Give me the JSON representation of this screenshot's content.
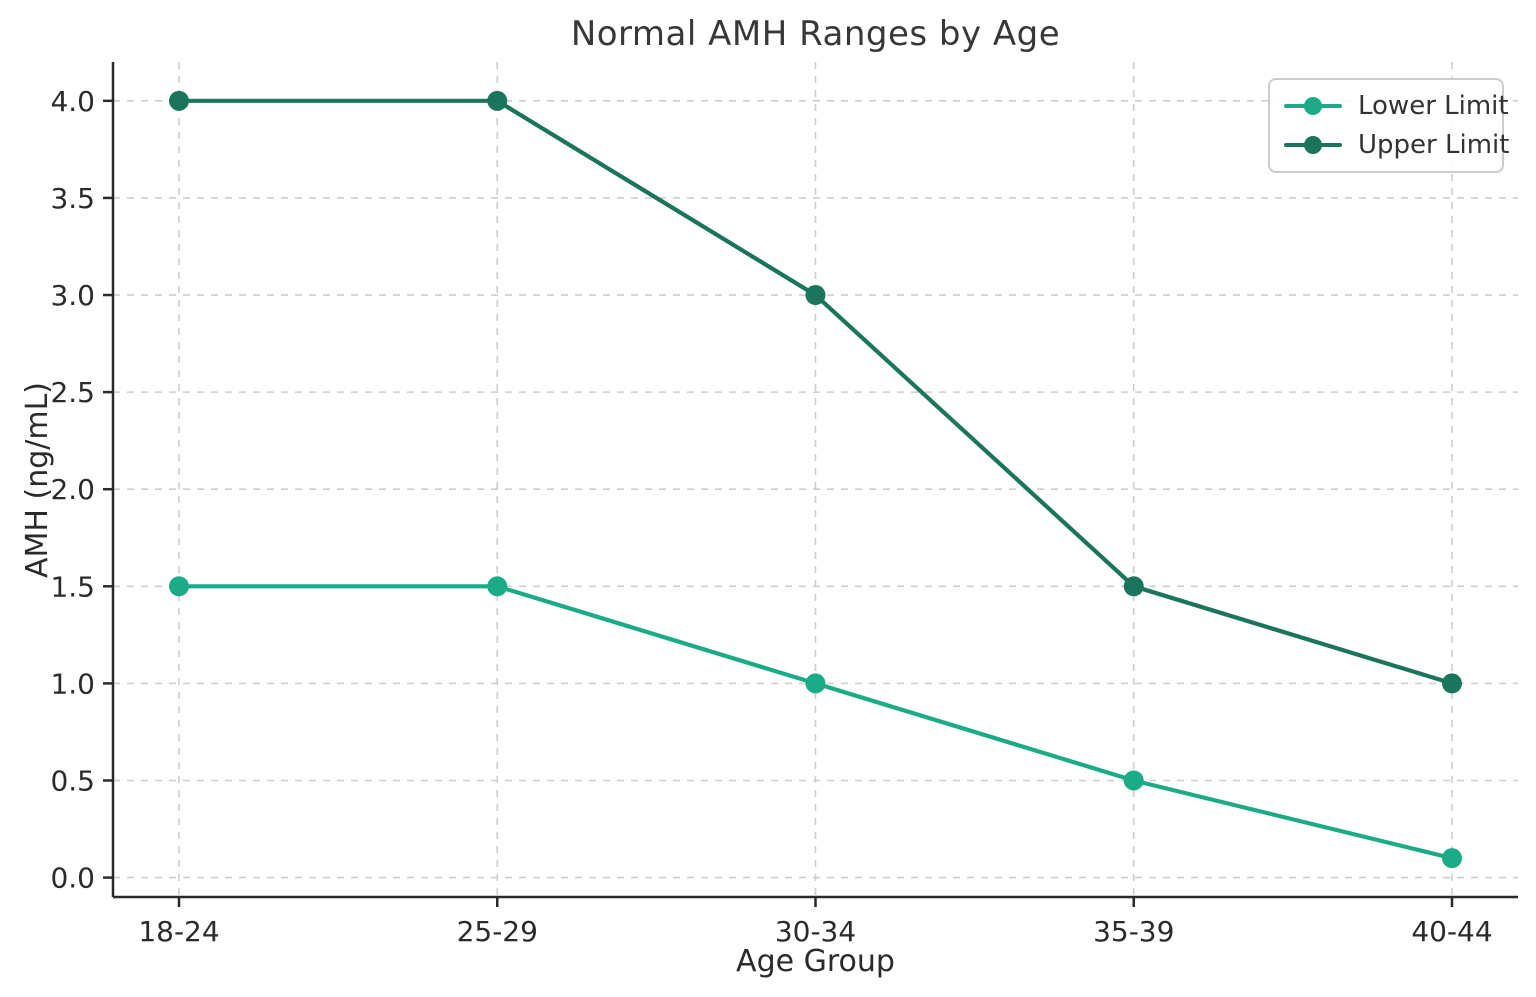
{
  "title": "Normal AMH Ranges by Age",
  "axes": {
    "xlabel": "Age Group",
    "ylabel": "AMH (ng/mL)"
  },
  "colors": {
    "lower_limit": "#1cab87",
    "upper_limit": "#1a755c",
    "grid": "#cdcdcd",
    "spine": "#2a2a2a",
    "tick_text": "#2b2b2b",
    "legend_border": "#cccccc",
    "title_text": "#383838"
  },
  "legend": {
    "position": "upper right",
    "items": [
      {
        "label": "Lower Limit",
        "color": "#1cab87"
      },
      {
        "label": "Upper Limit",
        "color": "#1a755c"
      }
    ]
  },
  "chart_data": {
    "type": "line",
    "title": "Normal AMH Ranges by Age",
    "xlabel": "Age Group",
    "ylabel": "AMH (ng/mL)",
    "categories": [
      "18-24",
      "25-29",
      "30-34",
      "35-39",
      "40-44"
    ],
    "series": [
      {
        "name": "Lower Limit",
        "color": "#1cab87",
        "values": [
          1.5,
          1.5,
          1.0,
          0.5,
          0.1
        ]
      },
      {
        "name": "Upper Limit",
        "color": "#1a755c",
        "values": [
          4.0,
          4.0,
          3.0,
          1.5,
          1.0
        ]
      }
    ],
    "yticks": [
      0.0,
      0.5,
      1.0,
      1.5,
      2.0,
      2.5,
      3.0,
      3.5,
      4.0
    ],
    "ytick_labels": [
      "0.0",
      "0.5",
      "1.0",
      "1.5",
      "2.0",
      "2.5",
      "3.0",
      "3.5",
      "4.0"
    ],
    "ylim": [
      -0.1,
      4.2
    ],
    "grid": true,
    "grid_style": "dashed",
    "marker": "circle",
    "legend_position": "upper right"
  }
}
